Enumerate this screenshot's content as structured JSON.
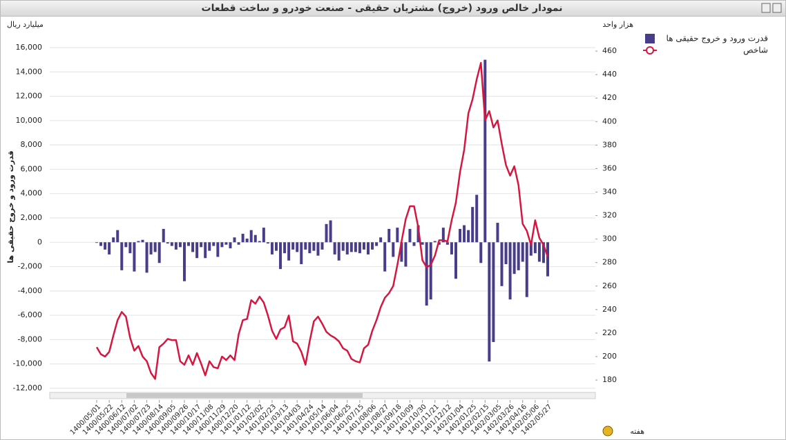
{
  "chart_data": {
    "type": "bar",
    "title": "نمودار خالص ورود (خروج) مشتریان حقیقی - صنعت خودرو و ساخت قطعات",
    "y_label": "قدرت ورود و خروج حقیقی ها",
    "y_unit": "میلیارد ریال",
    "y2_unit": "هزار واحد",
    "x_label": "هفته",
    "categories": [
      "1400/05/01",
      null,
      null,
      "1400/05/22",
      null,
      null,
      "1400/06/12",
      null,
      null,
      "1400/07/02",
      null,
      null,
      "1400/07/23",
      null,
      null,
      "1400/08/14",
      null,
      null,
      "1400/09/05",
      null,
      null,
      "1400/09/26",
      null,
      null,
      "1400/10/17",
      null,
      null,
      "1400/11/08",
      null,
      null,
      "1400/11/29",
      null,
      null,
      "1400/12/20",
      null,
      null,
      "1401/01/12",
      null,
      null,
      "1401/02/02",
      null,
      null,
      "1401/02/23",
      null,
      null,
      "1401/03/13",
      null,
      null,
      "1401/04/03",
      null,
      null,
      "1401/04/24",
      null,
      null,
      "1401/05/14",
      null,
      null,
      "1401/06/04",
      null,
      null,
      "1401/06/25",
      null,
      null,
      "1401/07/15",
      null,
      null,
      "1401/08/06",
      null,
      null,
      "1401/08/27",
      null,
      null,
      "1401/09/18",
      null,
      null,
      "1401/10/09",
      null,
      null,
      "1401/10/30",
      null,
      null,
      "1401/11/21",
      null,
      null,
      "1401/12/12",
      null,
      null,
      "1402/01/04",
      null,
      null,
      "1402/01/25",
      null,
      null,
      "1402/02/15",
      null,
      null,
      "1402/03/05",
      null,
      null,
      "1402/03/26",
      null,
      null,
      "1402/04/16",
      null,
      null,
      "1402/05/06",
      null,
      null,
      "1402/05/27"
    ],
    "series": [
      {
        "name": "قدرت ورود و خروج حقیقی ها",
        "color": "#483d8b",
        "type": "bar",
        "values": [
          -50,
          -300,
          -600,
          -1000,
          400,
          1000,
          -2300,
          -400,
          -900,
          -2400,
          100,
          200,
          -2500,
          -1000,
          -800,
          -1700,
          1100,
          -100,
          -300,
          -600,
          -400,
          -3200,
          -300,
          -800,
          -1300,
          -400,
          -1300,
          -700,
          -300,
          -1200,
          -400,
          -200,
          -500,
          400,
          -200,
          700,
          300,
          1000,
          600,
          100,
          1200,
          -100,
          -1000,
          -700,
          -2200,
          -900,
          -1500,
          -600,
          -800,
          -1800,
          -600,
          -900,
          -700,
          -1100,
          -600,
          1500,
          1800,
          -1000,
          -1500,
          -700,
          -1000,
          -800,
          -800,
          -900,
          -600,
          -1000,
          -600,
          -300,
          400,
          -2400,
          1100,
          -1200,
          1200,
          -1600,
          -2000,
          1100,
          -300,
          1400,
          -200,
          -5200,
          -4700,
          100,
          -200,
          1200,
          -200,
          -1000,
          -3000,
          1100,
          1400,
          1000,
          2900,
          3900,
          -1700,
          15000,
          -9800,
          -8200,
          1600,
          -3600,
          -1800,
          -4700,
          -2600,
          -2300,
          -1600,
          -4500,
          -1100,
          -900,
          -1600,
          -1700,
          -2800
        ]
      },
      {
        "name": "شاخص",
        "color": "#d6163f",
        "type": "line",
        "axis": "y2",
        "values": [
          208,
          202,
          200,
          204,
          218,
          231,
          238,
          234,
          216,
          205,
          209,
          200,
          196,
          186,
          181,
          208,
          211,
          215,
          214,
          214,
          196,
          193,
          201,
          193,
          203,
          194,
          184,
          196,
          191,
          190,
          200,
          197,
          201,
          197,
          219,
          231,
          232,
          248,
          245,
          251,
          246,
          235,
          222,
          215,
          223,
          225,
          235,
          213,
          211,
          204,
          193,
          213,
          230,
          234,
          228,
          221,
          218,
          216,
          213,
          207,
          205,
          198,
          196,
          195,
          207,
          210,
          222,
          231,
          242,
          250,
          254,
          260,
          278,
          298,
          317,
          328,
          328,
          310,
          282,
          276,
          278,
          286,
          299,
          299,
          298,
          316,
          331,
          357,
          376,
          407,
          419,
          436,
          450,
          401,
          409,
          395,
          401,
          381,
          363,
          354,
          362,
          346,
          313,
          307,
          295,
          316,
          301,
          295,
          285
        ]
      }
    ],
    "ylim": [
      -12000,
      16000
    ],
    "yticks": [
      {
        "value": -12000,
        "label": "-12,000"
      },
      {
        "value": -10000,
        "label": "-10,000"
      },
      {
        "value": -8000,
        "label": "-8,000"
      },
      {
        "value": -6000,
        "label": "-6,000"
      },
      {
        "value": -4000,
        "label": "-4,000"
      },
      {
        "value": -2000,
        "label": "-2,000"
      },
      0,
      {
        "value": 2000,
        "label": "2,000"
      },
      {
        "value": 4000,
        "label": "4,000"
      },
      {
        "value": 6000,
        "label": "6,000"
      },
      {
        "value": 8000,
        "label": "8,000"
      },
      {
        "value": 10000,
        "label": "10,000"
      },
      {
        "value": 12000,
        "label": "12,000"
      },
      {
        "value": 14000,
        "label": "14,000"
      },
      {
        "value": 16000,
        "label": "16,000"
      }
    ],
    "y2lim": [
      173,
      463
    ],
    "y2ticks": [
      180,
      200,
      220,
      240,
      260,
      280,
      300,
      320,
      340,
      360,
      380,
      400,
      420,
      440,
      460
    ],
    "grid": true
  }
}
